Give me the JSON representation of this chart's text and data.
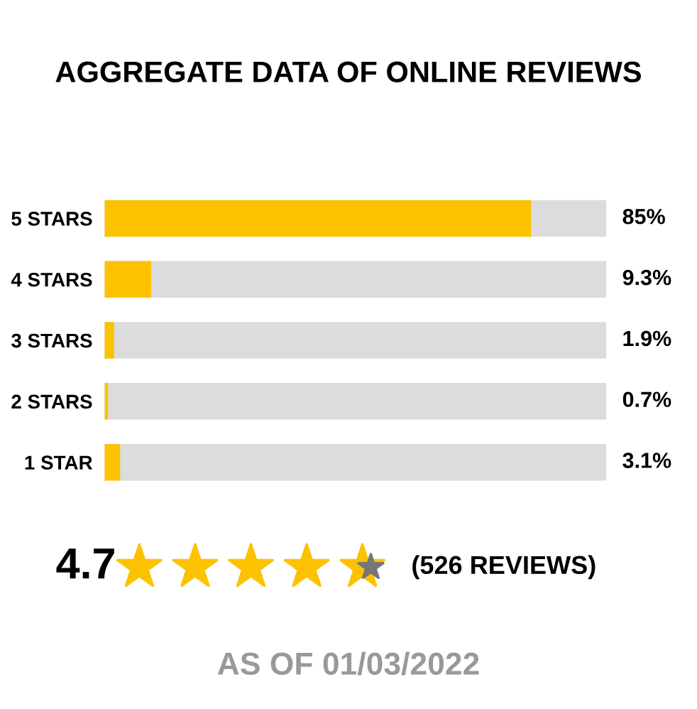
{
  "chart_data": {
    "type": "bar",
    "orientation": "horizontal",
    "title": "AGGREGATE DATA OF ONLINE REVIEWS",
    "categories": [
      "5 STARS",
      "4 STARS",
      "3 STARS",
      "2 STARS",
      "1 STAR"
    ],
    "values": [
      85,
      9.3,
      1.9,
      0.7,
      3.1
    ],
    "value_labels": [
      "85%",
      "9.3%",
      "1.9%",
      "0.7%",
      "3.1%"
    ],
    "color": "#fcc200",
    "xlim": [
      0,
      100
    ],
    "grid": false,
    "legend": false,
    "annotations": [
      "4.7",
      "(526 REVIEWS)",
      "AS OF 01/03/2022"
    ]
  }
}
